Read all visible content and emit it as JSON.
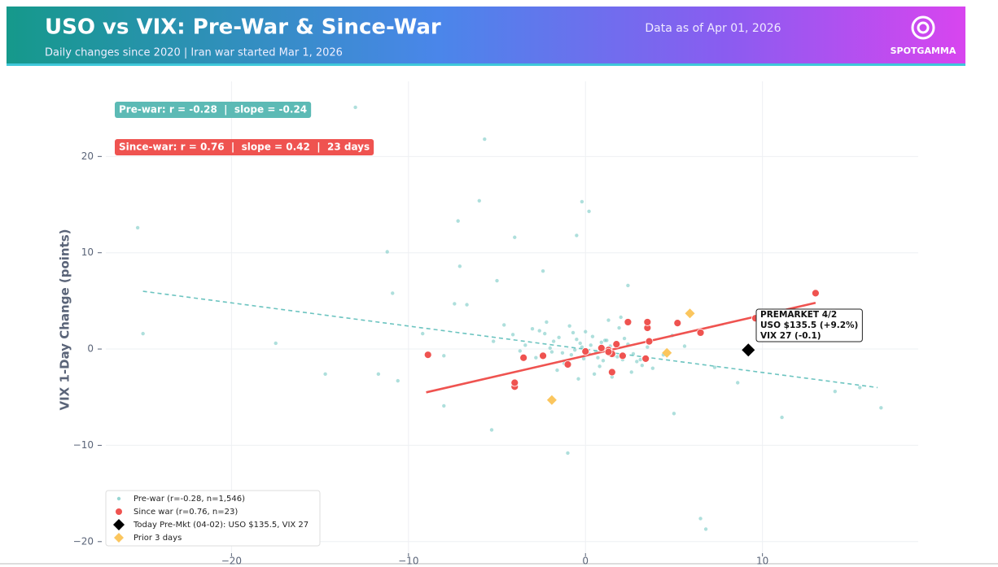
{
  "chart_data": {
    "type": "scatter",
    "title": "USO vs VIX: Pre-War & Since-War",
    "subtitle": "Daily changes since 2020 | Iran war started Mar 1, 2026",
    "date_note": "Data as of Apr 01, 2026",
    "brand": "SPOTGAMMA",
    "y_label": "VIX 1-Day Change (points)",
    "xlim": [
      -27.1,
      18.8
    ],
    "ylim": [
      -21.2,
      27.8
    ],
    "xticks": [
      {
        "value": -20,
        "label": "−20"
      },
      {
        "value": -10,
        "label": "−10"
      },
      0,
      10
    ],
    "yticks": [
      {
        "value": -20,
        "label": "−20"
      },
      {
        "value": -10,
        "label": "−10"
      },
      0,
      10,
      20
    ],
    "grid": true,
    "legend": "lower left",
    "stats": [
      {
        "text": "Pre-war: r = -0.28  |  slope = -0.24",
        "color": "#5cbab5"
      },
      {
        "text": "Since-war: r = 0.76  |  slope = 0.42  |  23 days",
        "color": "#ef5350"
      }
    ],
    "series": [
      {
        "name": "Pre-war (r=-0.28, n=1,546)",
        "color": "#6cc4c0",
        "marker": "circle",
        "x": [
          -13.0,
          -5.7,
          -25.3,
          -6.0,
          -0.2,
          0.2,
          -7.2,
          -4.0,
          -0.5,
          -11.2,
          -7.1,
          -25.0,
          -10.9,
          -17.5,
          -14.7,
          -11.7,
          -10.6,
          -8.0,
          -5.3,
          -1.0,
          6.5,
          6.8,
          11.1,
          14.1,
          16.7,
          15.5,
          5.0,
          2.4,
          -5.0,
          -6.7,
          -7.4,
          -2.4,
          8.6,
          7.3,
          -9.2,
          -8.0,
          0.3,
          -0.8,
          1.2,
          -1.5,
          2.1,
          0.6,
          -0.2,
          1.8,
          -2.3,
          0.9,
          -1.1,
          2.7,
          -0.5,
          1.4,
          -3.0,
          0.1,
          3.2,
          -1.8,
          0.7,
          -0.6,
          2.4,
          -2.6,
          1.0,
          -0.3,
          3.8,
          -1.3,
          0.4,
          1.6,
          -2.0,
          2.9,
          -0.9,
          0.2,
          -4.1,
          1.1,
          -1.6,
          3.5,
          -0.1,
          2.2,
          -3.4,
          0.8,
          4.4,
          -2.8,
          1.9,
          -0.7,
          0.5,
          -5.2,
          2.6,
          -1.2,
          4.9,
          -3.7,
          1.3,
          -0.4,
          3.1,
          -2.2,
          0.0,
          5.6,
          -4.6,
          1.5,
          -1.9,
          2.0
        ],
        "values": [
          25.1,
          21.8,
          12.6,
          15.4,
          15.3,
          14.3,
          13.3,
          11.6,
          11.8,
          10.1,
          8.6,
          1.6,
          5.8,
          0.6,
          -2.6,
          -2.6,
          -3.3,
          -5.9,
          -8.4,
          -10.8,
          -17.6,
          -18.7,
          -7.1,
          -4.4,
          -6.1,
          -4.0,
          -6.7,
          6.6,
          7.1,
          4.6,
          4.7,
          8.1,
          -3.5,
          -1.9,
          1.6,
          -0.7,
          0.4,
          -0.6,
          0.9,
          1.2,
          -1.1,
          -0.3,
          0.2,
          -0.8,
          1.6,
          0.7,
          -1.4,
          -0.5,
          1.0,
          0.3,
          2.1,
          -0.2,
          -1.7,
          0.8,
          -0.9,
          -0.1,
          0.5,
          1.9,
          -1.2,
          0.6,
          -2.0,
          -0.4,
          1.3,
          -0.7,
          0.1,
          -1.3,
          2.4,
          -0.5,
          1.5,
          0.9,
          -2.2,
          0.2,
          -1.0,
          1.1,
          0.4,
          -1.8,
          -0.6,
          -0.9,
          2.2,
          1.7,
          -2.6,
          0.8,
          -2.4,
          -1.5,
          1.4,
          -0.2,
          3.0,
          -3.1,
          -1.1,
          2.8,
          1.8,
          0.3,
          2.5,
          -2.9,
          -0.3,
          3.3
        ]
      },
      {
        "name": "Since war (r=0.76, n=23)",
        "color": "#ef5350",
        "marker": "circle",
        "x": [
          -8.9,
          -4.0,
          -4.0,
          -3.5,
          -2.4,
          -1.0,
          1.3,
          1.5,
          1.5,
          2.1,
          2.4,
          3.4,
          3.5,
          3.5,
          3.6,
          5.2,
          6.5,
          9.6,
          13.0,
          1.3,
          1.75,
          0.9,
          0.0
        ],
        "values": [
          -0.6,
          -3.9,
          -3.5,
          -0.9,
          -0.7,
          -1.6,
          -0.1,
          -0.5,
          -2.4,
          -0.7,
          2.8,
          -1.0,
          2.2,
          2.8,
          0.8,
          2.7,
          1.7,
          3.2,
          5.8,
          -0.3,
          0.5,
          0.1,
          -0.25
        ]
      },
      {
        "name": "Today Pre-Mkt (04-02): USO $135.5, VIX 27",
        "color": "#000000",
        "marker": "diamond",
        "x": [
          9.2
        ],
        "values": [
          -0.1
        ]
      },
      {
        "name": "Prior 3 days",
        "color": "#fbc65e",
        "marker": "diamond",
        "x": [
          5.9,
          4.6,
          -1.9
        ],
        "values": [
          3.7,
          -0.4,
          -5.3
        ]
      }
    ],
    "trend_lines": [
      {
        "color": "#6cc4c0",
        "style": "dashed",
        "x": [
          -25.0,
          16.5
        ],
        "values": [
          6.0,
          -4.0
        ]
      },
      {
        "color": "#ef5350",
        "style": "solid",
        "x": [
          -9.0,
          13.0
        ],
        "values": [
          -4.5,
          4.8
        ]
      }
    ],
    "annotation": {
      "lines": [
        "PREMARKET 4/2",
        "USO $135.5 (+9.2%)",
        "VIX 27 (-0.1)"
      ]
    }
  }
}
